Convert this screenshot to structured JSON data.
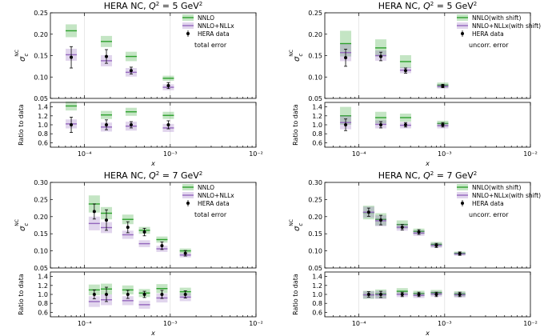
{
  "chart_data": [
    {
      "type": "scatter",
      "title": "HERA NC, Q² = 5 GeV²",
      "title_plain": "HERA NC, ",
      "title_q": "Q",
      "title_q_sup": "2",
      "title_rest": " = 5 GeV",
      "title_rest_sup": "2",
      "xlabel": "x",
      "ylabel_main": "σ",
      "ylabel_sub": "c",
      "ylabel_sup": "NC",
      "ratio_ylabel": "Ratio to data",
      "xlim": [
        4e-05,
        0.01
      ],
      "xtick_labels": [
        "10⁻⁴",
        "10⁻³",
        "10⁻²"
      ],
      "ylim": [
        0.05,
        0.25
      ],
      "yticks": [
        0.05,
        0.1,
        0.15,
        0.2,
        0.25
      ],
      "ytick_labels": [
        "0.05",
        "0.10",
        "0.15",
        "0.20",
        "0.25"
      ],
      "ratio_ylim": [
        0.5,
        1.5
      ],
      "ratio_yticks": [
        0.6,
        0.8,
        1.0,
        1.2,
        1.4
      ],
      "ratio_ytick_labels": [
        "0.6",
        "0.8",
        "1.0",
        "1.2",
        "1.4"
      ],
      "legend_position": "top-right",
      "annotation": "total error",
      "series": [
        {
          "name": "NNLO",
          "color": "#2ca02c",
          "x": [
            7e-05,
            0.00018,
            0.00035,
            0.00095
          ],
          "y": [
            0.208,
            0.183,
            0.148,
            0.097
          ],
          "err": [
            0.015,
            0.013,
            0.011,
            0.006
          ],
          "ratio": [
            1.42,
            1.22,
            1.29,
            1.21
          ],
          "ratio_err": [
            0.1,
            0.09,
            0.09,
            0.08
          ]
        },
        {
          "name": "NNLO+NLLx",
          "color": "#9467bd",
          "x": [
            7e-05,
            0.00018,
            0.00035,
            0.00095
          ],
          "y": [
            0.152,
            0.138,
            0.111,
            0.076
          ],
          "err": [
            0.014,
            0.013,
            0.01,
            0.007
          ],
          "ratio": [
            1.02,
            0.95,
            0.97,
            0.93
          ],
          "ratio_err": [
            0.1,
            0.1,
            0.1,
            0.09
          ]
        },
        {
          "name": "HERA data",
          "color": "#000000",
          "x": [
            7e-05,
            0.00018,
            0.00035,
            0.00095
          ],
          "y": [
            0.146,
            0.148,
            0.115,
            0.08
          ],
          "err": [
            0.025,
            0.016,
            0.008,
            0.007
          ],
          "ratio": [
            1.0,
            1.0,
            1.0,
            1.0
          ],
          "ratio_err": [
            0.17,
            0.11,
            0.07,
            0.09
          ]
        }
      ]
    },
    {
      "type": "scatter",
      "title": "HERA NC, Q² = 5 GeV²",
      "title_plain": "HERA NC, ",
      "title_q": "Q",
      "title_q_sup": "2",
      "title_rest": " = 5 GeV",
      "title_rest_sup": "2",
      "xlabel": "x",
      "ylabel_main": "σ",
      "ylabel_sub": "c",
      "ylabel_sup": "NC",
      "ratio_ylabel": "Ratio to data",
      "xlim": [
        4e-05,
        0.01
      ],
      "xtick_labels": [
        "10⁻⁴",
        "10⁻³",
        "10⁻²"
      ],
      "ylim": [
        0.05,
        0.25
      ],
      "yticks": [
        0.05,
        0.1,
        0.15,
        0.2,
        0.25
      ],
      "ytick_labels": [
        "0.05",
        "0.10",
        "0.15",
        "0.20",
        "0.25"
      ],
      "ratio_ylim": [
        0.5,
        1.5
      ],
      "ratio_yticks": [
        0.6,
        0.8,
        1.0,
        1.2,
        1.4
      ],
      "ratio_ytick_labels": [
        "0.6",
        "0.8",
        "1.0",
        "1.2",
        "1.4"
      ],
      "legend_position": "top-right",
      "annotation": "uncorr. error",
      "series": [
        {
          "name": "NNLO(with shift)",
          "color": "#2ca02c",
          "x": [
            7e-05,
            0.00018,
            0.00035,
            0.00095
          ],
          "y": [
            0.178,
            0.168,
            0.136,
            0.081
          ],
          "err": [
            0.03,
            0.02,
            0.015,
            0.006
          ],
          "ratio": [
            1.2,
            1.16,
            1.16,
            1.03
          ],
          "ratio_err": [
            0.2,
            0.13,
            0.09,
            0.06
          ]
        },
        {
          "name": "NNLO+NLLx(with shift)",
          "color": "#9467bd",
          "x": [
            7e-05,
            0.00018,
            0.00035,
            0.00095
          ],
          "y": [
            0.157,
            0.15,
            0.116,
            0.078
          ],
          "err": [
            0.02,
            0.012,
            0.007,
            0.005
          ],
          "ratio": [
            1.05,
            1.01,
            0.99,
            0.98
          ],
          "ratio_err": [
            0.15,
            0.09,
            0.07,
            0.06
          ]
        },
        {
          "name": "HERA data",
          "color": "#000000",
          "x": [
            7e-05,
            0.00018,
            0.00035,
            0.00095
          ],
          "y": [
            0.145,
            0.148,
            0.115,
            0.079
          ],
          "err": [
            0.02,
            0.01,
            0.006,
            0.004
          ],
          "ratio": [
            1.0,
            1.0,
            1.0,
            1.0
          ],
          "ratio_err": [
            0.13,
            0.07,
            0.05,
            0.05
          ]
        }
      ]
    },
    {
      "type": "scatter",
      "title": "HERA NC, Q² = 7 GeV²",
      "title_plain": "HERA NC, ",
      "title_q": "Q",
      "title_q_sup": "2",
      "title_rest": " = 7 GeV",
      "title_rest_sup": "2",
      "xlabel": "x",
      "ylabel_main": "σ",
      "ylabel_sub": "c",
      "ylabel_sup": "NC",
      "ratio_ylabel": "Ratio to data",
      "xlim": [
        4e-05,
        0.01
      ],
      "xtick_labels": [
        "10⁻⁴",
        "10⁻³",
        "10⁻²"
      ],
      "ylim": [
        0.05,
        0.3
      ],
      "yticks": [
        0.05,
        0.1,
        0.15,
        0.2,
        0.25,
        0.3
      ],
      "ytick_labels": [
        "0.05",
        "0.10",
        "0.15",
        "0.20",
        "0.25",
        "0.30"
      ],
      "ratio_ylim": [
        0.5,
        1.5
      ],
      "ratio_yticks": [
        0.6,
        0.8,
        1.0,
        1.2,
        1.4
      ],
      "ratio_ytick_labels": [
        "0.6",
        "0.8",
        "1.0",
        "1.2",
        "1.4"
      ],
      "legend_position": "top-right",
      "annotation": "total error",
      "series": [
        {
          "name": "NNLO",
          "color": "#2ca02c",
          "x": [
            0.00013,
            0.00018,
            0.00032,
            0.0005,
            0.0008,
            0.0015
          ],
          "y": [
            0.237,
            0.21,
            0.192,
            0.16,
            0.133,
            0.1
          ],
          "err": [
            0.025,
            0.018,
            0.014,
            0.01,
            0.009,
            0.007
          ],
          "ratio": [
            1.1,
            1.12,
            1.1,
            1.03,
            1.13,
            1.06
          ],
          "ratio_err": [
            0.12,
            0.12,
            0.1,
            0.09,
            0.1,
            0.09
          ]
        },
        {
          "name": "NNLO+NLLx",
          "color": "#9467bd",
          "x": [
            0.00013,
            0.00018,
            0.00032,
            0.0005,
            0.0008,
            0.0015
          ],
          "y": [
            0.18,
            0.168,
            0.147,
            0.121,
            0.106,
            0.088
          ],
          "err": [
            0.02,
            0.016,
            0.012,
            0.01,
            0.009,
            0.007
          ],
          "ratio": [
            0.84,
            0.88,
            0.86,
            0.77,
            0.92,
            0.94
          ],
          "ratio_err": [
            0.12,
            0.12,
            0.1,
            0.09,
            0.1,
            0.09
          ]
        },
        {
          "name": "HERA data",
          "color": "#000000",
          "x": [
            0.00013,
            0.00018,
            0.00032,
            0.0005,
            0.0008,
            0.0015
          ],
          "y": [
            0.215,
            0.19,
            0.169,
            0.155,
            0.115,
            0.093
          ],
          "err": [
            0.022,
            0.03,
            0.016,
            0.011,
            0.011,
            0.008
          ],
          "ratio": [
            1.0,
            1.0,
            1.0,
            1.0,
            1.0,
            1.0
          ],
          "ratio_err": [
            0.1,
            0.16,
            0.09,
            0.07,
            0.09,
            0.08
          ]
        }
      ]
    },
    {
      "type": "scatter",
      "title": "HERA NC, Q² = 7 GeV²",
      "title_plain": "HERA NC, ",
      "title_q": "Q",
      "title_q_sup": "2",
      "title_rest": " = 7 GeV",
      "title_rest_sup": "2",
      "xlabel": "x",
      "ylabel_main": "σ",
      "ylabel_sub": "c",
      "ylabel_sup": "NC",
      "ratio_ylabel": "Ratio to data",
      "xlim": [
        4e-05,
        0.01
      ],
      "xtick_labels": [
        "10⁻⁴",
        "10⁻³",
        "10⁻²"
      ],
      "ylim": [
        0.05,
        0.3
      ],
      "yticks": [
        0.05,
        0.1,
        0.15,
        0.2,
        0.25,
        0.3
      ],
      "ytick_labels": [
        "0.05",
        "0.10",
        "0.15",
        "0.20",
        "0.25",
        "0.30"
      ],
      "ratio_ylim": [
        0.5,
        1.5
      ],
      "ratio_yticks": [
        0.6,
        0.8,
        1.0,
        1.2,
        1.4
      ],
      "ratio_ytick_labels": [
        "0.6",
        "0.8",
        "1.0",
        "1.2",
        "1.4"
      ],
      "legend_position": "top-right",
      "annotation": "uncorr. error",
      "series": [
        {
          "name": "NNLO(with shift)",
          "color": "#2ca02c",
          "x": [
            0.00013,
            0.00018,
            0.00032,
            0.0005,
            0.0008,
            0.0015
          ],
          "y": [
            0.212,
            0.192,
            0.177,
            0.157,
            0.119,
            0.093
          ],
          "err": [
            0.02,
            0.018,
            0.012,
            0.008,
            0.007,
            0.005
          ],
          "ratio": [
            0.99,
            1.01,
            1.07,
            1.02,
            1.04,
            1.01
          ],
          "ratio_err": [
            0.09,
            0.1,
            0.07,
            0.06,
            0.06,
            0.06
          ]
        },
        {
          "name": "NNLO+NLLx(with shift)",
          "color": "#9467bd",
          "x": [
            0.00013,
            0.00018,
            0.00032,
            0.0005,
            0.0008,
            0.0015
          ],
          "y": [
            0.213,
            0.188,
            0.169,
            0.152,
            0.116,
            0.091
          ],
          "err": [
            0.016,
            0.016,
            0.01,
            0.008,
            0.007,
            0.005
          ],
          "ratio": [
            0.99,
            0.99,
            1.0,
            0.98,
            1.01,
            0.99
          ],
          "ratio_err": [
            0.08,
            0.09,
            0.06,
            0.06,
            0.06,
            0.06
          ]
        },
        {
          "name": "HERA data",
          "color": "#000000",
          "x": [
            0.00013,
            0.00018,
            0.00032,
            0.0005,
            0.0008,
            0.0015
          ],
          "y": [
            0.213,
            0.19,
            0.169,
            0.155,
            0.116,
            0.092
          ],
          "err": [
            0.012,
            0.014,
            0.008,
            0.007,
            0.006,
            0.005
          ],
          "ratio": [
            1.0,
            1.0,
            1.0,
            1.0,
            1.0,
            1.0
          ],
          "ratio_err": [
            0.06,
            0.07,
            0.05,
            0.05,
            0.05,
            0.05
          ]
        }
      ]
    }
  ]
}
